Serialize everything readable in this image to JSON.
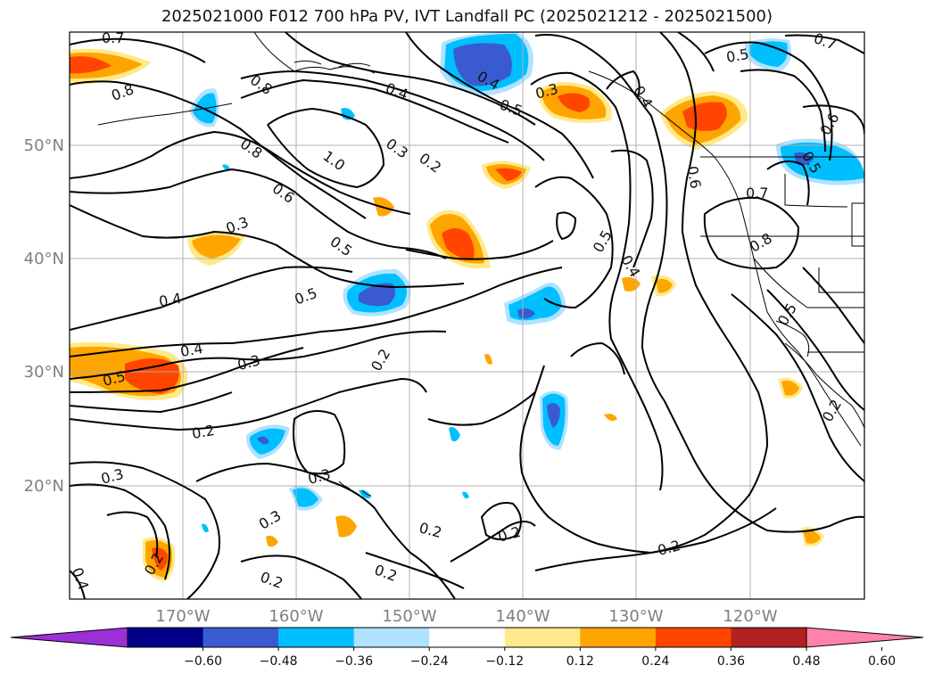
{
  "figure": {
    "title": "2025021000 F012 700 hPa PV, IVT Landfall PC (2025021212 - 2025021500)"
  },
  "map": {
    "lon_labels": [
      "170°W",
      "160°W",
      "150°W",
      "140°W",
      "130°W",
      "120°W"
    ],
    "lat_labels": [
      "50°N",
      "40°N",
      "30°N",
      "20°N"
    ],
    "contour_labels": [
      "0.7",
      "0.8",
      "0.8",
      "0.8",
      "0.6",
      "1.0",
      "0.3",
      "0.2",
      "0.5",
      "0.4",
      "0.3",
      "0.5",
      "0.4",
      "0.3",
      "0.2",
      "0.3",
      "0.3",
      "0.3",
      "0.2",
      "0.4",
      "0.4",
      "0.3",
      "0.5",
      "0.5",
      "0.4",
      "0.5",
      "0.6",
      "0.4",
      "0.5",
      "0.5",
      "0.7",
      "0.8",
      "0.5",
      "0.6",
      "0.7",
      "0.2",
      "0.2",
      "0.2",
      "0.2",
      "0.2",
      "0.2",
      "0.2",
      "0.4"
    ]
  },
  "colorbar": {
    "ticks": [
      "−0.60",
      "−0.48",
      "−0.36",
      "−0.24",
      "−0.12",
      "0.12",
      "0.24",
      "0.36",
      "0.48",
      "0.60"
    ],
    "colors": [
      "#9b30d6",
      "#00008b",
      "#3a5bd0",
      "#00bfff",
      "#b0e2ff",
      "#ffffff",
      "#ffe98a",
      "#ffa500",
      "#ff4500",
      "#b22222",
      "#ff82ab"
    ]
  }
}
